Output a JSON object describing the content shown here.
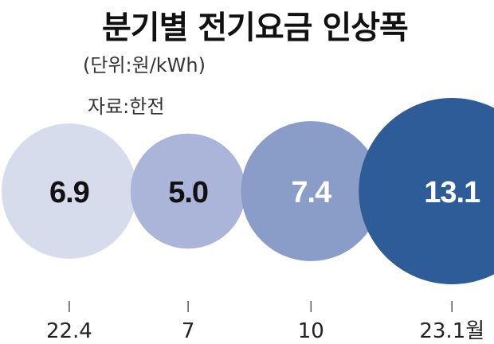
{
  "title": "분기별 전기요금 인상폭",
  "unit": "(단위:원/kWh)",
  "source": "자료:한전",
  "chart_data": {
    "type": "bubble",
    "title": "분기별 전기요금 인상폭",
    "unit": "원/kWh",
    "categories": [
      "22.4",
      "7",
      "10",
      "23.1월"
    ],
    "values": [
      6.9,
      5.0,
      7.4,
      13.1
    ],
    "value_labels": [
      "6.9",
      "5.0",
      "7.4",
      "13.1"
    ],
    "colors": [
      "#d7dcec",
      "#aab5d9",
      "#8a9cc8",
      "#2e5c99"
    ],
    "label_colors": [
      "#111111",
      "#111111",
      "#ffffff",
      "#ffffff"
    ]
  }
}
